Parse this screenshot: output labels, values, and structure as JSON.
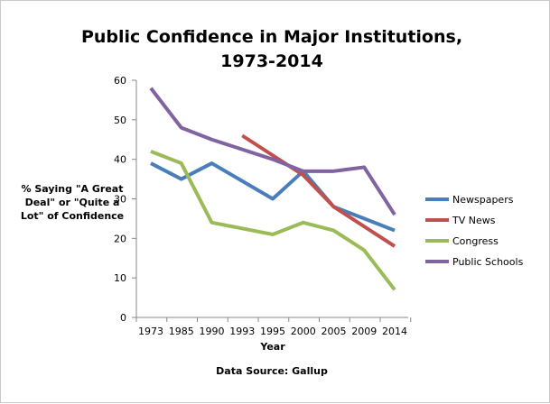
{
  "chart_data": {
    "type": "line",
    "title": [
      "Public Confidence in Major Institutions,",
      "1973-2014"
    ],
    "xlabel": "Year",
    "ylabel": [
      "% Saying \"A Great",
      "Deal\" or \"Quite a",
      "Lot\" of Confidence"
    ],
    "categories": [
      "1973",
      "1985",
      "1990",
      "1993",
      "1995",
      "2000",
      "2005",
      "2009",
      "2014"
    ],
    "ylim": [
      0,
      60
    ],
    "yticks": [
      0,
      10,
      20,
      30,
      40,
      50,
      60
    ],
    "grid": false,
    "legend_position": "right",
    "series": [
      {
        "name": "Newspapers",
        "color": "#4a7eba",
        "values": [
          39,
          35,
          39,
          null,
          30,
          37,
          28,
          25,
          22
        ]
      },
      {
        "name": "TV News",
        "color": "#c0504d",
        "values": [
          null,
          null,
          null,
          46,
          null,
          36,
          28,
          null,
          18
        ]
      },
      {
        "name": "Congress",
        "color": "#9bbb59",
        "values": [
          42,
          39,
          24,
          null,
          21,
          24,
          22,
          17,
          7
        ]
      },
      {
        "name": "Public Schools",
        "color": "#8064a2",
        "values": [
          58,
          48,
          45,
          null,
          40,
          37,
          37,
          38,
          26
        ]
      }
    ]
  },
  "source": "Data Source:  Gallup"
}
